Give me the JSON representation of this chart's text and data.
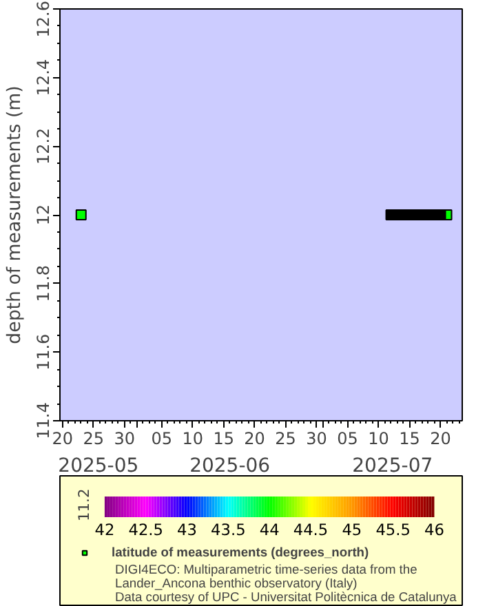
{
  "chart_data": {
    "type": "scatter",
    "ylabel": "depth of measurements (m)",
    "ylim": [
      11.4,
      12.6
    ],
    "yticks": [
      11.4,
      11.6,
      11.8,
      12,
      12.2,
      12.4,
      12.6
    ],
    "xlim": [
      "2025-05-19T14:00",
      "2025-07-23T12:00"
    ],
    "xticks": [
      {
        "value": "2025-05-20",
        "label": "20"
      },
      {
        "value": "2025-05-25",
        "label": "25"
      },
      {
        "value": "2025-05-30",
        "label": "30"
      },
      {
        "value": "2025-06-01",
        "label": null
      },
      {
        "value": "2025-06-05",
        "label": "05"
      },
      {
        "value": "2025-06-10",
        "label": "10"
      },
      {
        "value": "2025-06-15",
        "label": "15"
      },
      {
        "value": "2025-06-20",
        "label": "20"
      },
      {
        "value": "2025-06-25",
        "label": "25"
      },
      {
        "value": "2025-06-30",
        "label": "30"
      },
      {
        "value": "2025-07-01",
        "label": null
      },
      {
        "value": "2025-07-05",
        "label": "05"
      },
      {
        "value": "2025-07-10",
        "label": "10"
      },
      {
        "value": "2025-07-15",
        "label": "15"
      },
      {
        "value": "2025-07-20",
        "label": "20"
      }
    ],
    "marker": "square",
    "grid": false,
    "clim": [
      42,
      46
    ],
    "cticks": [
      42,
      42.5,
      43,
      43.5,
      44,
      44.5,
      45,
      45.5,
      46
    ],
    "series": [
      {
        "name": "latitude of measurements (degrees_north)",
        "x": [
          "2025-05-23",
          "2025-07-21"
        ],
        "values": [
          12,
          12
        ],
        "cvalues": [
          44,
          44
        ]
      },
      {
        "color": "#000000",
        "x": [
          "2025-07-12",
          "2025-07-13",
          "2025-07-14",
          "2025-07-15",
          "2025-07-16",
          "2025-07-17",
          "2025-07-18",
          "2025-07-19",
          "2025-07-20"
        ],
        "values": [
          12,
          12,
          12,
          12,
          12,
          12,
          12,
          12,
          12
        ]
      }
    ],
    "annotations": [
      "2025-05",
      "2025-06",
      "2025-07",
      "11.2",
      "DIGI4ECO: Multiparametric time-series data from the",
      "Lander_Ancona benthic observatory (Italy)",
      "Data courtesy of UPC - Universitat Politècnica de Catalunya"
    ]
  }
}
